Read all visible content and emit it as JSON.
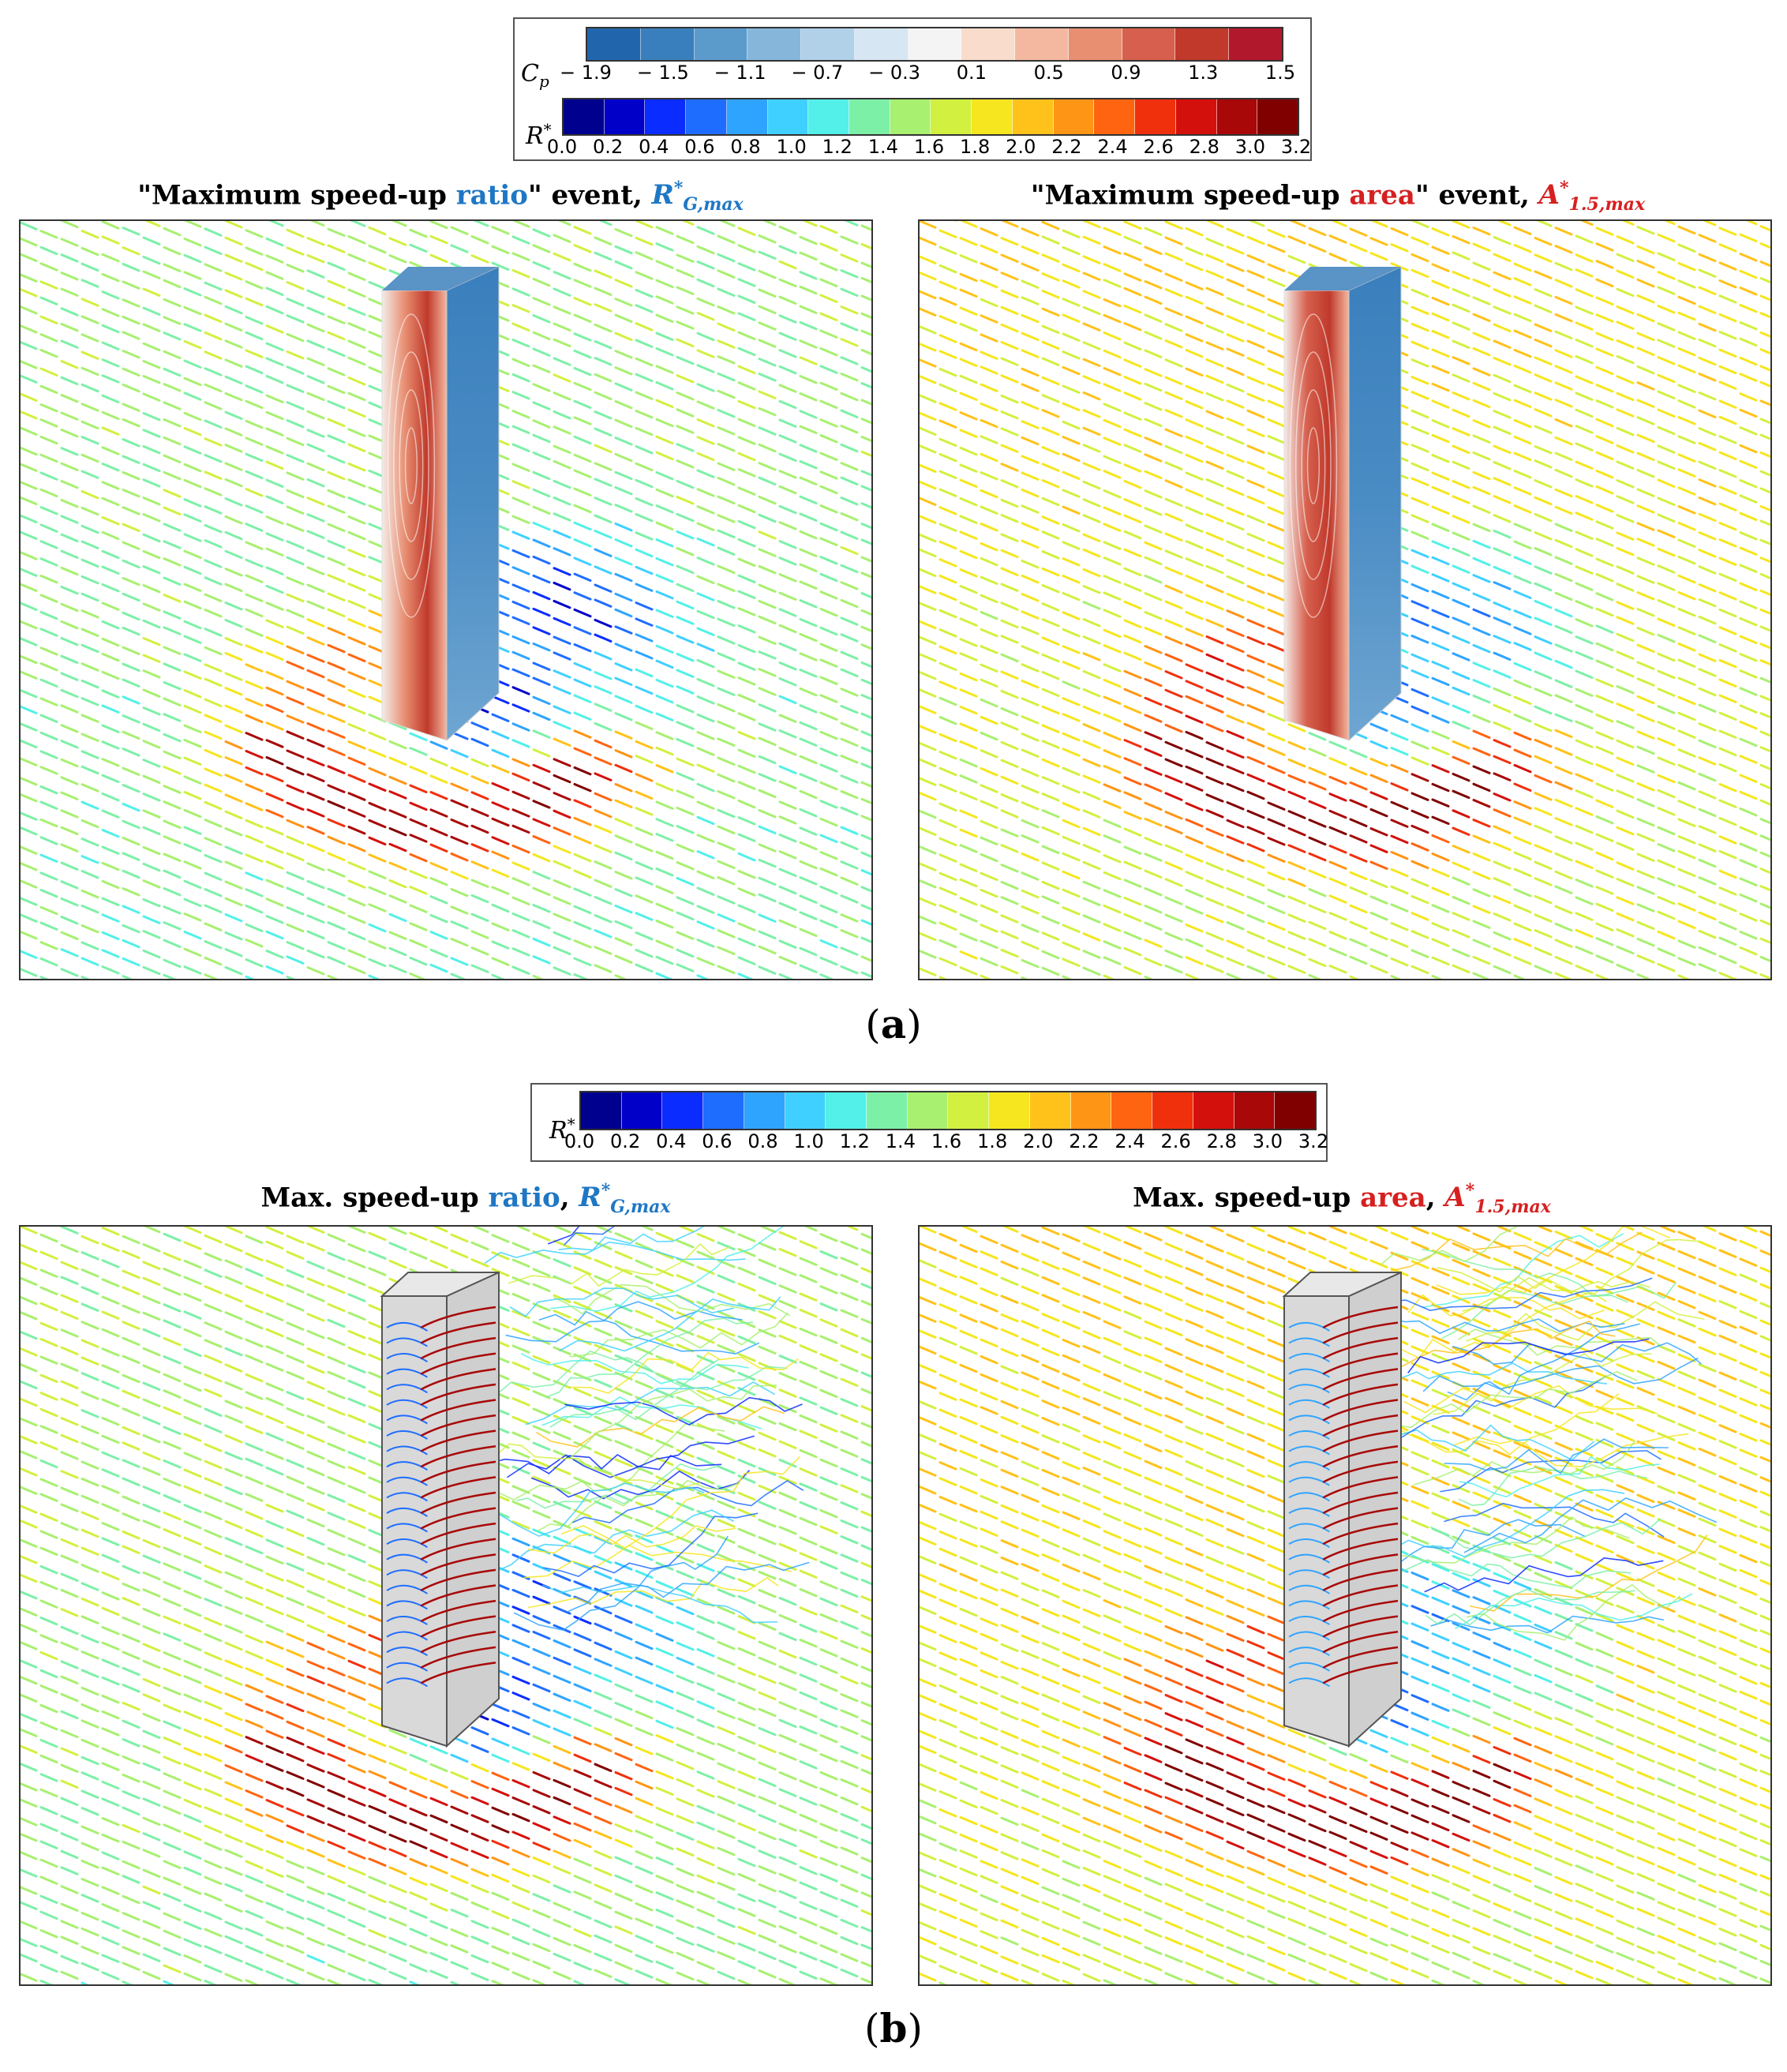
{
  "legend_a": {
    "cp_symbol": "C",
    "cp_sub": "p",
    "cp_ticks": [
      "− 1.9",
      "− 1.5",
      "− 1.1",
      "− 0.7",
      "− 0.3",
      "0.1",
      "0.5",
      "0.9",
      "1.3",
      "1.5"
    ],
    "r_symbol": "R",
    "r_sup": "*",
    "r_ticks": [
      "0.0",
      "0.2",
      "0.4",
      "0.6",
      "0.8",
      "1.0",
      "1.2",
      "1.4",
      "1.6",
      "1.8",
      "2.0",
      "2.2",
      "2.4",
      "2.6",
      "2.8",
      "3.0",
      "3.2"
    ]
  },
  "legend_b": {
    "r_symbol": "R",
    "r_sup": "*",
    "r_ticks": [
      "0.0",
      "0.2",
      "0.4",
      "0.6",
      "0.8",
      "1.0",
      "1.2",
      "1.4",
      "1.6",
      "1.8",
      "2.0",
      "2.2",
      "2.4",
      "2.6",
      "2.8",
      "3.0",
      "3.2"
    ]
  },
  "titles": {
    "a_left_pre": "\"Maximum speed-up ",
    "a_left_key": "ratio",
    "a_left_mid": "\" event, ",
    "a_left_sym": "R",
    "a_left_sup": "*",
    "a_left_sub": "G,max",
    "a_right_pre": "\"Maximum speed-up ",
    "a_right_key": "area",
    "a_right_mid": "\" event, ",
    "a_right_sym": "A",
    "a_right_sup": "*",
    "a_right_sub": "1.5,max",
    "b_left_pre": "Max. speed-up ",
    "b_left_key": "ratio",
    "b_left_mid": ", ",
    "b_left_sym": "R",
    "b_left_sup": "*",
    "b_left_sub": "G,max",
    "b_right_pre": "Max. speed-up ",
    "b_right_key": "area",
    "b_right_mid": ", ",
    "b_right_sym": "A",
    "b_right_sup": "*",
    "b_right_sub": "1.5,max"
  },
  "captions": {
    "a": "a",
    "b": "b",
    "open": "(",
    "close": ")"
  },
  "colors": {
    "cp_scale": [
      "#2166ac",
      "#3a7fbd",
      "#5b9bcc",
      "#86b7db",
      "#b1d1e8",
      "#d6e6f2",
      "#f4f4f4",
      "#f9dccb",
      "#f4b8a0",
      "#e88f72",
      "#d6604d",
      "#c0392b",
      "#b2182b"
    ],
    "r_scale": [
      "#00008f",
      "#0000c8",
      "#0a2cff",
      "#1f6dff",
      "#2fa4ff",
      "#3fd0ff",
      "#52f0e8",
      "#7df0a8",
      "#a8f070",
      "#d2f040",
      "#f5e61f",
      "#ffc21a",
      "#ff9514",
      "#ff6410",
      "#f0300c",
      "#d4100c",
      "#a80808",
      "#800000"
    ],
    "accent_blue": "#1f77c4",
    "accent_red": "#d62020"
  }
}
